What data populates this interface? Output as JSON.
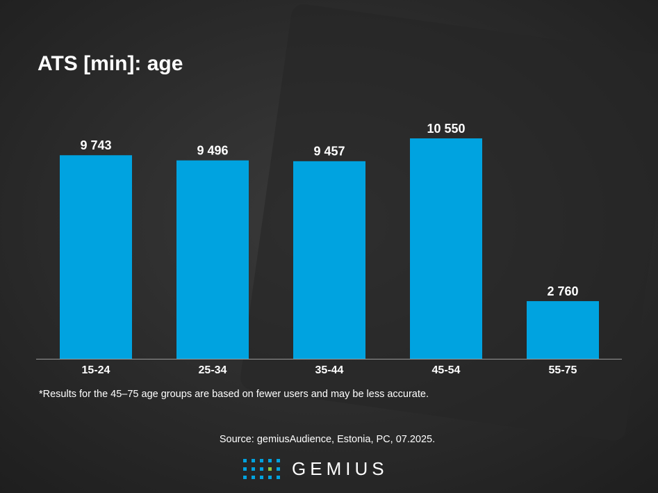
{
  "chart_data": {
    "type": "bar",
    "title": "ATS [min]: age",
    "categories": [
      "15-24",
      "25-34",
      "35-44",
      "45-54",
      "55-75"
    ],
    "values": [
      9743,
      9496,
      9457,
      10550,
      2760
    ],
    "value_labels": [
      "9 743",
      "9 496",
      "9 457",
      "10 550",
      "2 760"
    ],
    "color": "#00a3e0",
    "note": "*Results for the 45–75 age groups are based on fewer users and may be less accurate.",
    "source": "Source: gemiusAudience, Estonia, PC, 07.2025."
  },
  "logo": "GEMIUS"
}
